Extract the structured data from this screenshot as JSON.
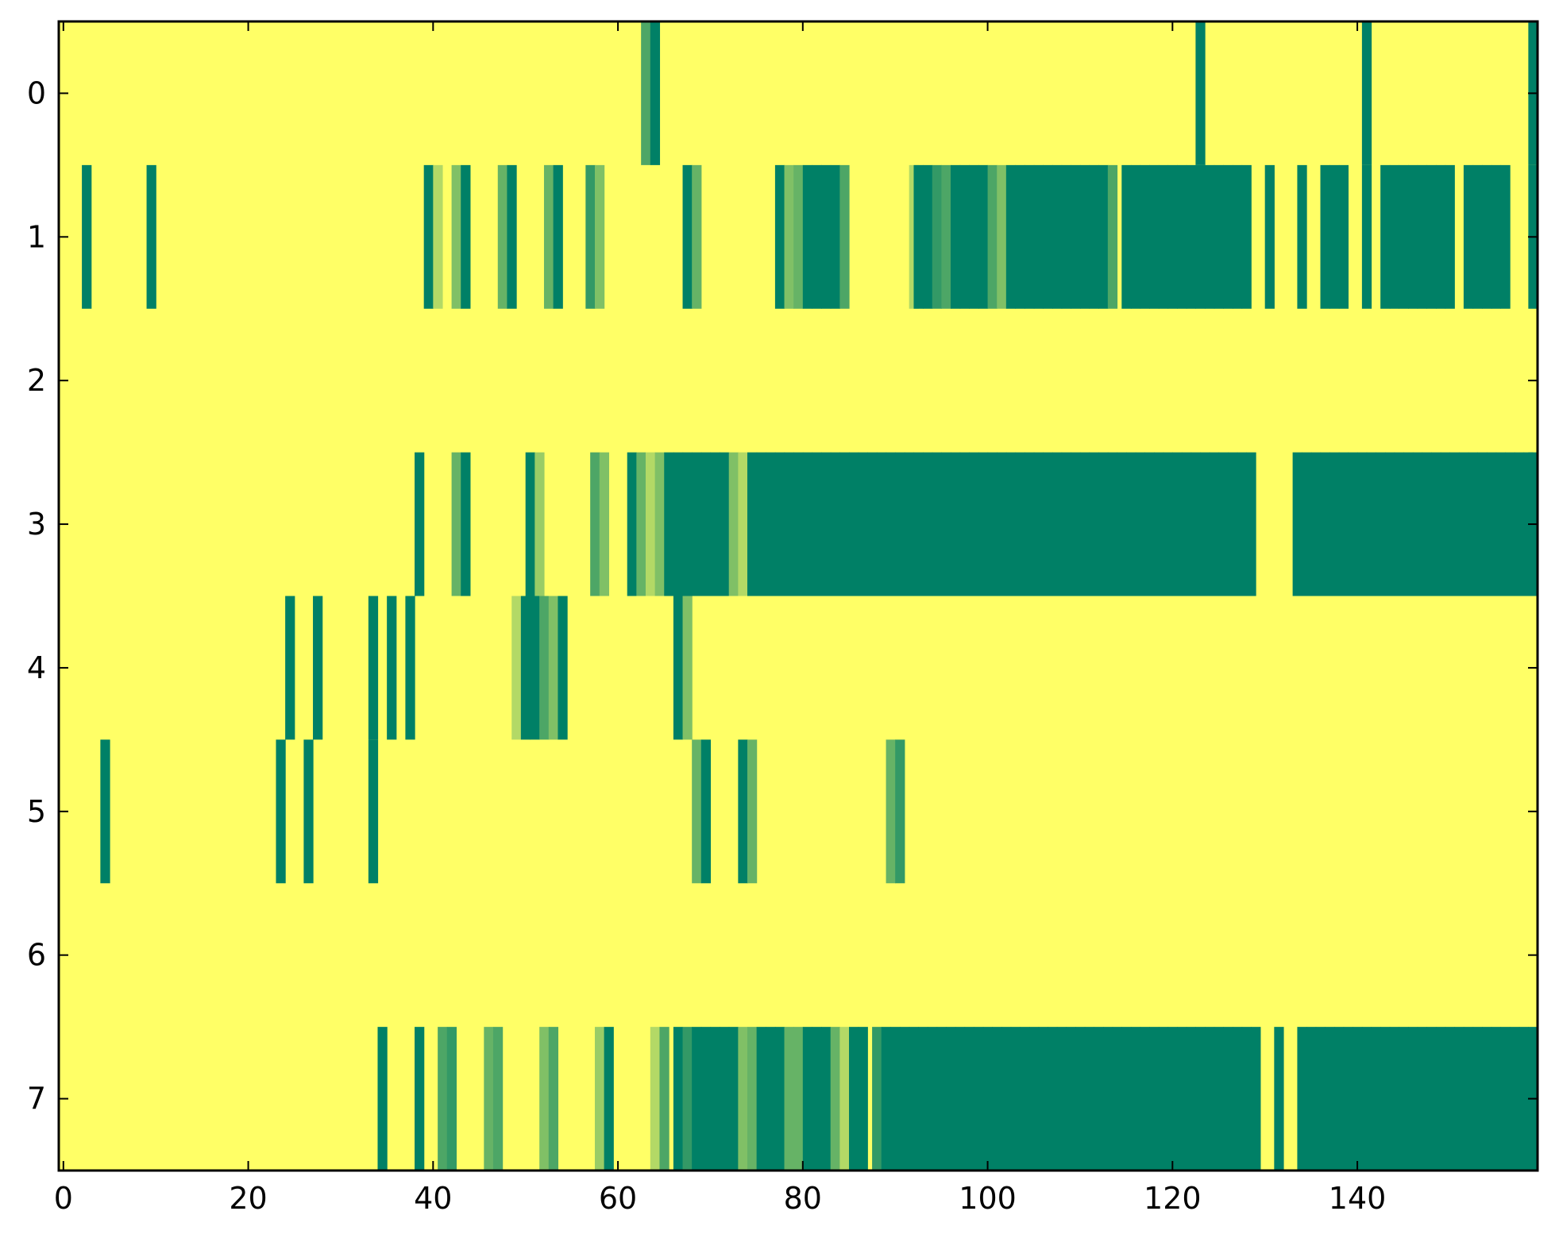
{
  "chart_data": {
    "type": "heatmap",
    "title": "",
    "xlabel": "",
    "ylabel": "",
    "n_rows": 8,
    "n_cols": 160,
    "xlim": [
      -0.5,
      159.5
    ],
    "ylim": [
      7.5,
      -0.5
    ],
    "x_ticks": [
      0,
      20,
      40,
      60,
      80,
      100,
      120,
      140
    ],
    "x_tick_labels": [
      "0",
      "20",
      "40",
      "60",
      "80",
      "100",
      "120",
      "140"
    ],
    "y_ticks": [
      0,
      1,
      2,
      3,
      4,
      5,
      6,
      7
    ],
    "y_tick_labels": [
      "0",
      "1",
      "2",
      "3",
      "4",
      "5",
      "6",
      "7"
    ],
    "grid": false,
    "colormap": "summer_r",
    "value_range": [
      0,
      1
    ],
    "colors": {
      "low": "#ffff66",
      "high": "#008066",
      "axis": "#000000",
      "background": "#ffffff"
    },
    "rows": [
      {
        "row": 0,
        "segments": [
          [
            63,
            0.7
          ],
          [
            64,
            1
          ],
          [
            123,
            1
          ],
          [
            141,
            1
          ],
          [
            159,
            1
          ]
        ]
      },
      {
        "row": 1,
        "segments": [
          [
            2.5,
            1
          ],
          [
            9.5,
            1
          ],
          [
            39.5,
            1
          ],
          [
            40.5,
            0.3
          ],
          [
            42.5,
            0.5
          ],
          [
            43.5,
            1
          ],
          [
            47.5,
            0.6
          ],
          [
            48.5,
            1
          ],
          [
            52.5,
            0.6
          ],
          [
            53.5,
            1
          ],
          [
            57,
            0.8
          ],
          [
            58,
            0.5
          ],
          [
            67.5,
            1
          ],
          [
            68.5,
            0.6
          ],
          [
            77.5,
            1
          ],
          [
            78.5,
            0.5
          ],
          [
            79.5,
            0.6
          ],
          [
            80.5,
            1
          ],
          [
            81.5,
            1
          ],
          [
            82.5,
            1
          ],
          [
            83.5,
            1
          ],
          [
            84.5,
            0.7
          ],
          [
            92,
            0.3
          ],
          [
            92.5,
            1
          ],
          [
            93.5,
            1
          ],
          [
            94.5,
            0.8
          ],
          [
            95.5,
            0.7
          ],
          [
            96.5,
            1
          ],
          [
            97.5,
            1
          ],
          [
            98.5,
            1
          ],
          [
            99.5,
            1
          ],
          [
            100.5,
            0.7
          ],
          [
            101.5,
            0.5
          ],
          [
            102.5,
            1
          ],
          [
            103.5,
            1
          ],
          [
            104.5,
            1
          ],
          [
            105.5,
            1
          ],
          [
            106.5,
            1
          ],
          [
            107.5,
            1
          ],
          [
            108.5,
            1
          ],
          [
            109.5,
            1
          ],
          [
            110.5,
            1
          ],
          [
            111.5,
            1
          ],
          [
            112.5,
            1
          ],
          [
            113.5,
            0.7
          ],
          [
            115,
            1
          ],
          [
            116,
            1
          ],
          [
            117,
            1
          ],
          [
            118,
            1
          ],
          [
            119,
            1
          ],
          [
            120,
            1
          ],
          [
            121,
            1
          ],
          [
            122,
            1
          ],
          [
            123,
            1
          ],
          [
            124,
            1
          ],
          [
            125,
            1
          ],
          [
            126,
            1
          ],
          [
            127,
            1
          ],
          [
            128,
            1
          ],
          [
            130.5,
            1
          ],
          [
            134,
            1
          ],
          [
            136.5,
            1
          ],
          [
            137.5,
            1
          ],
          [
            138.5,
            1
          ],
          [
            141,
            1
          ],
          [
            143,
            1
          ],
          [
            144,
            1
          ],
          [
            145,
            1
          ],
          [
            146,
            1
          ],
          [
            147,
            1
          ],
          [
            148,
            1
          ],
          [
            149,
            1
          ],
          [
            150,
            1
          ],
          [
            152,
            1
          ],
          [
            153,
            1
          ],
          [
            154,
            1
          ],
          [
            155,
            1
          ],
          [
            156,
            1
          ],
          [
            159,
            1
          ]
        ]
      },
      {
        "row": 2,
        "segments": []
      },
      {
        "row": 3,
        "segments": [
          [
            38.5,
            1
          ],
          [
            42.5,
            0.6
          ],
          [
            43.5,
            1
          ],
          [
            50.5,
            1
          ],
          [
            51.5,
            0.4
          ],
          [
            57.5,
            0.7
          ],
          [
            58.5,
            0.5
          ],
          [
            61.5,
            1
          ],
          [
            62.5,
            0.6
          ],
          [
            63.5,
            0.3
          ],
          [
            64.5,
            0.5
          ],
          [
            65.5,
            1
          ],
          [
            66.5,
            1
          ],
          [
            67.5,
            1
          ],
          [
            68.5,
            1
          ],
          [
            69.5,
            1
          ],
          [
            70.5,
            1
          ],
          [
            71.5,
            1
          ],
          [
            72.5,
            0.5
          ],
          [
            73.5,
            0.3
          ],
          [
            74.5,
            1
          ],
          [
            75.5,
            1
          ],
          [
            76.5,
            1
          ],
          [
            77.5,
            1
          ],
          [
            78.5,
            1
          ],
          [
            79.5,
            1
          ],
          [
            80.5,
            1
          ],
          [
            81.5,
            1
          ],
          [
            82.5,
            1
          ],
          [
            83.5,
            1
          ],
          [
            84.5,
            1
          ],
          [
            85.5,
            1
          ],
          [
            86.5,
            1
          ],
          [
            87.5,
            1
          ],
          [
            88.5,
            1
          ],
          [
            89.5,
            1
          ],
          [
            90.5,
            1
          ],
          [
            91.5,
            1
          ],
          [
            92.5,
            1
          ],
          [
            93.5,
            1
          ],
          [
            94.5,
            1
          ],
          [
            95.5,
            1
          ],
          [
            96.5,
            1
          ],
          [
            97.5,
            1
          ],
          [
            98.5,
            1
          ],
          [
            99.5,
            1
          ],
          [
            100.5,
            1
          ],
          [
            101.5,
            1
          ],
          [
            102.5,
            1
          ],
          [
            103.5,
            1
          ],
          [
            104.5,
            1
          ],
          [
            105.5,
            1
          ],
          [
            106.5,
            1
          ],
          [
            107.5,
            1
          ],
          [
            108.5,
            1
          ],
          [
            109.5,
            1
          ],
          [
            110.5,
            1
          ],
          [
            111.5,
            1
          ],
          [
            112.5,
            1
          ],
          [
            113.5,
            1
          ],
          [
            114.5,
            1
          ],
          [
            115.5,
            1
          ],
          [
            116.5,
            1
          ],
          [
            117.5,
            1
          ],
          [
            118.5,
            1
          ],
          [
            119.5,
            1
          ],
          [
            120.5,
            1
          ],
          [
            121.5,
            1
          ],
          [
            122.5,
            1
          ],
          [
            123.5,
            1
          ],
          [
            124.5,
            1
          ],
          [
            125.5,
            1
          ],
          [
            126.5,
            1
          ],
          [
            127.5,
            1
          ],
          [
            128.5,
            1
          ],
          [
            133.5,
            1
          ],
          [
            134.5,
            1
          ],
          [
            135.5,
            1
          ],
          [
            136.5,
            1
          ],
          [
            137.5,
            1
          ],
          [
            138.5,
            1
          ],
          [
            139.5,
            1
          ],
          [
            140.5,
            1
          ],
          [
            141.5,
            1
          ],
          [
            142.5,
            1
          ],
          [
            143.5,
            1
          ],
          [
            144.5,
            1
          ],
          [
            145.5,
            1
          ],
          [
            146.5,
            1
          ],
          [
            147.5,
            1
          ],
          [
            148.5,
            1
          ],
          [
            149.5,
            1
          ],
          [
            150.5,
            1
          ],
          [
            151.5,
            1
          ],
          [
            152.5,
            1
          ],
          [
            153.5,
            1
          ],
          [
            154.5,
            1
          ],
          [
            155.5,
            1
          ],
          [
            156.5,
            1
          ],
          [
            157.5,
            1
          ],
          [
            158.5,
            1
          ],
          [
            159,
            1
          ]
        ]
      },
      {
        "row": 4,
        "segments": [
          [
            24.5,
            1
          ],
          [
            27.5,
            1
          ],
          [
            33.5,
            1
          ],
          [
            35.5,
            1
          ],
          [
            37.5,
            1
          ],
          [
            49,
            0.3
          ],
          [
            50,
            1
          ],
          [
            51,
            1
          ],
          [
            52,
            0.7
          ],
          [
            53,
            0.5
          ],
          [
            54,
            1
          ],
          [
            66.5,
            1
          ],
          [
            67.5,
            0.5
          ]
        ]
      },
      {
        "row": 5,
        "segments": [
          [
            4.5,
            1
          ],
          [
            23.5,
            1
          ],
          [
            26.5,
            1
          ],
          [
            33.5,
            1
          ],
          [
            68.5,
            0.6
          ],
          [
            69.5,
            1
          ],
          [
            73.5,
            1
          ],
          [
            74.5,
            0.6
          ],
          [
            89.5,
            0.6
          ],
          [
            90.5,
            0.8
          ]
        ]
      },
      {
        "row": 6,
        "segments": []
      },
      {
        "row": 7,
        "segments": [
          [
            34.5,
            1
          ],
          [
            38.5,
            1
          ],
          [
            41,
            0.7
          ],
          [
            42,
            0.8
          ],
          [
            46,
            0.6
          ],
          [
            47,
            0.7
          ],
          [
            52,
            0.5
          ],
          [
            53,
            0.7
          ],
          [
            58,
            0.4
          ],
          [
            59,
            1
          ],
          [
            64,
            0.3
          ],
          [
            65,
            0.7
          ],
          [
            66.5,
            1
          ],
          [
            67.5,
            0.8
          ],
          [
            68.5,
            1
          ],
          [
            69.5,
            1
          ],
          [
            70.5,
            1
          ],
          [
            71.5,
            1
          ],
          [
            72.5,
            1
          ],
          [
            73.5,
            0.5
          ],
          [
            74.5,
            0.6
          ],
          [
            75.5,
            1
          ],
          [
            76.5,
            1
          ],
          [
            77.5,
            1
          ],
          [
            78.5,
            0.6
          ],
          [
            79.5,
            0.6
          ],
          [
            80.5,
            1
          ],
          [
            81.5,
            1
          ],
          [
            82.5,
            1
          ],
          [
            83.5,
            0.6
          ],
          [
            84.5,
            0.3
          ],
          [
            85.5,
            1
          ],
          [
            86.5,
            1
          ],
          [
            88,
            0.8
          ],
          [
            89,
            1
          ],
          [
            90,
            1
          ],
          [
            91,
            1
          ],
          [
            92,
            1
          ],
          [
            93,
            1
          ],
          [
            94,
            1
          ],
          [
            95,
            1
          ],
          [
            96,
            1
          ],
          [
            97,
            1
          ],
          [
            98,
            1
          ],
          [
            99,
            1
          ],
          [
            100,
            1
          ],
          [
            101,
            1
          ],
          [
            102,
            1
          ],
          [
            103,
            1
          ],
          [
            104,
            1
          ],
          [
            105,
            1
          ],
          [
            106,
            1
          ],
          [
            107,
            1
          ],
          [
            108,
            1
          ],
          [
            109,
            1
          ],
          [
            110,
            1
          ],
          [
            111,
            1
          ],
          [
            112,
            1
          ],
          [
            113,
            1
          ],
          [
            114,
            1
          ],
          [
            115,
            1
          ],
          [
            116,
            1
          ],
          [
            117,
            1
          ],
          [
            118,
            1
          ],
          [
            119,
            1
          ],
          [
            120,
            1
          ],
          [
            121,
            1
          ],
          [
            122,
            1
          ],
          [
            123,
            1
          ],
          [
            124,
            1
          ],
          [
            125,
            1
          ],
          [
            126,
            1
          ],
          [
            127,
            1
          ],
          [
            128,
            1
          ],
          [
            129,
            1
          ],
          [
            131.5,
            1
          ],
          [
            134,
            1
          ],
          [
            135,
            1
          ],
          [
            136,
            1
          ],
          [
            137,
            1
          ],
          [
            138,
            1
          ],
          [
            139,
            1
          ],
          [
            140,
            1
          ],
          [
            141,
            1
          ],
          [
            142,
            1
          ],
          [
            143,
            1
          ],
          [
            144,
            1
          ],
          [
            145,
            1
          ],
          [
            146,
            1
          ],
          [
            147,
            1
          ],
          [
            148,
            1
          ],
          [
            149,
            1
          ],
          [
            150,
            1
          ],
          [
            151,
            1
          ],
          [
            152,
            1
          ],
          [
            153,
            1
          ],
          [
            154,
            1
          ],
          [
            155,
            1
          ],
          [
            156,
            1
          ],
          [
            157,
            1
          ],
          [
            158,
            1
          ],
          [
            159,
            1
          ]
        ]
      }
    ]
  }
}
